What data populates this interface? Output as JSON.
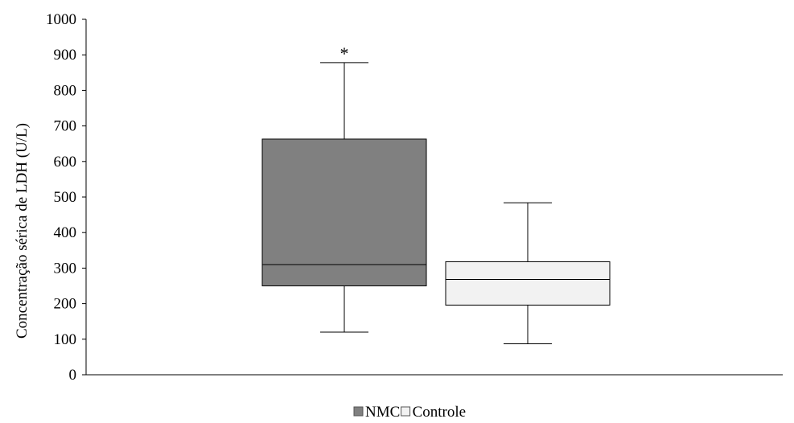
{
  "chart_data": {
    "type": "box",
    "ylabel": "Concentração sérica de LDH (U/L)",
    "xlabel": "",
    "ylim": [
      0,
      1000
    ],
    "yticks": [
      0,
      100,
      200,
      300,
      400,
      500,
      600,
      700,
      800,
      900,
      1000
    ],
    "grid": false,
    "legend_position": "bottom",
    "series": [
      {
        "name": "NMC",
        "color": "#808080",
        "min": 120,
        "q1": 250,
        "median": 310,
        "q3": 663,
        "max": 878,
        "annotation": "*"
      },
      {
        "name": "Controle",
        "color": "#f2f2f2",
        "min": 87,
        "q1": 196,
        "median": 268,
        "q3": 318,
        "max": 484,
        "annotation": ""
      }
    ]
  }
}
